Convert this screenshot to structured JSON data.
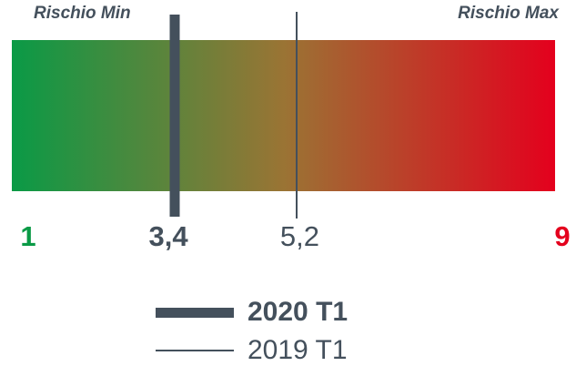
{
  "chart_data": {
    "type": "gauge",
    "scale_min": 1,
    "scale_max": 9,
    "min_caption": "Rischio Min",
    "max_caption": "Rischio Max",
    "min_label": "1",
    "max_label": "9",
    "gradient_colors": [
      "#0a9a46",
      "#9a7434",
      "#e4001d"
    ],
    "min_color": "#0a9a46",
    "max_color": "#e4001d",
    "marker_color": "#44505c",
    "series": [
      {
        "name": "2020 T1",
        "value": 3.4,
        "label": "3,4"
      },
      {
        "name": "2019 T1",
        "value": 5.2,
        "label": "5,2"
      }
    ]
  }
}
